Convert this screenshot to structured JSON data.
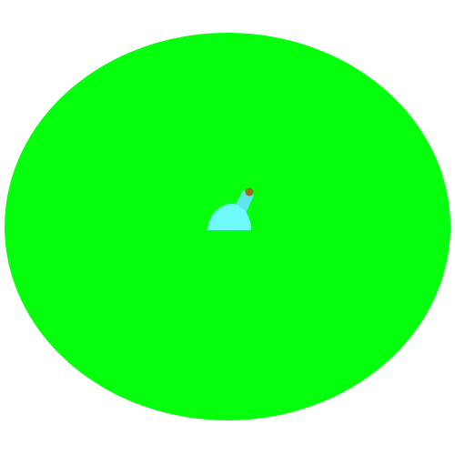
{
  "scene": {
    "background_color": "#ffffff",
    "arena_color": "#05ff0d",
    "player": {
      "body_color": "#70fafe",
      "barrel_color": "#5ee6e8",
      "barrel_tip_color": "#9a6a14"
    }
  }
}
